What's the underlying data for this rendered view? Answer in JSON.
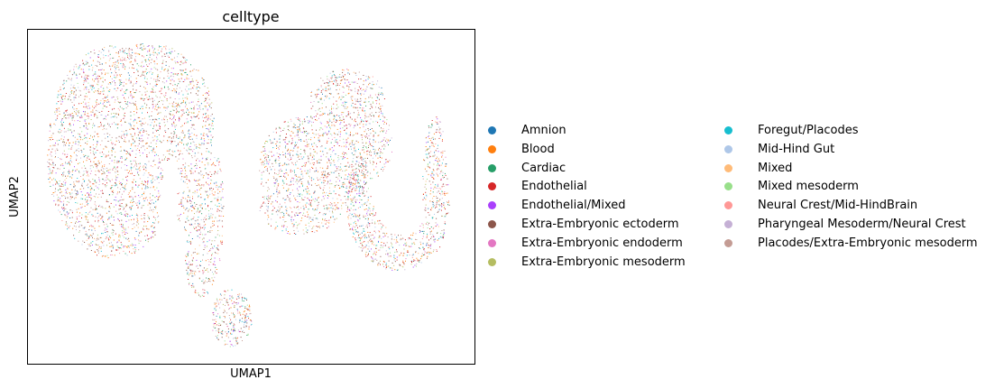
{
  "chart_data": {
    "type": "scatter",
    "title": "celltype",
    "xlabel": "UMAP1",
    "ylabel": "UMAP2",
    "xticks": [],
    "yticks": [],
    "grid": false,
    "legend_position": "right",
    "legend_columns": 2,
    "x_range": [
      -12,
      18
    ],
    "y_range": [
      -8,
      13
    ],
    "categories": [
      {
        "name": "Amnion",
        "color": "#1f77b4"
      },
      {
        "name": "Blood",
        "color": "#ff7f0e"
      },
      {
        "name": "Cardiac",
        "color": "#279e68"
      },
      {
        "name": "Endothelial",
        "color": "#d62728"
      },
      {
        "name": "Endothelial/Mixed",
        "color": "#aa40fc"
      },
      {
        "name": "Extra-Embryonic ectoderm",
        "color": "#8c564b"
      },
      {
        "name": "Extra-Embryonic endoderm",
        "color": "#e377c2"
      },
      {
        "name": "Extra-Embryonic mesoderm",
        "color": "#b5bd61"
      },
      {
        "name": "Foregut/Placodes",
        "color": "#17becf"
      },
      {
        "name": "Mid-Hind Gut",
        "color": "#aec7e8"
      },
      {
        "name": "Mixed",
        "color": "#ffbb78"
      },
      {
        "name": "Mixed mesoderm",
        "color": "#98df8a"
      },
      {
        "name": "Neural Crest/Mid-HindBrain",
        "color": "#ff9896"
      },
      {
        "name": "Pharyngeal Mesoderm/Neural Crest",
        "color": "#c5b0d5"
      },
      {
        "name": "Placodes/Extra-Embryonic mesoderm",
        "color": "#c49c94"
      }
    ],
    "clusters": [
      {
        "shape": "horseshoe",
        "center": [
          -2.6,
          4.9
        ],
        "extent": [
          [
            -10.5,
            4.8
          ],
          [
            -4.1,
            12.2
          ]
        ]
      },
      {
        "shape": "lobe",
        "center": [
          -1.8,
          -5.5
        ],
        "extent": [
          [
            -3.3,
            -0.3
          ],
          [
            -7.8,
            -3.4
          ]
        ]
      },
      {
        "shape": "blob",
        "center": [
          5.6,
          4.8
        ],
        "extent": [
          [
            3.0,
            8.7
          ],
          [
            1.6,
            10.0
          ]
        ]
      },
      {
        "shape": "crescent",
        "center": [
          11.5,
          2.5
        ],
        "extent": [
          [
            7.0,
            16.9
          ],
          [
            -1.2,
            8.1
          ]
        ]
      }
    ]
  }
}
